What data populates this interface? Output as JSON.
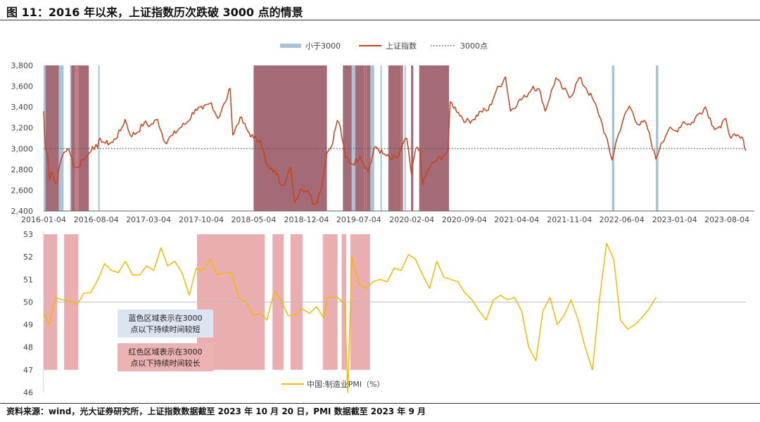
{
  "figure": {
    "title": "图 11：2016 年以来，上证指数历次跌破 3000 点的情景",
    "source": "资料来源：wind，光大证券研究所，上证指数数据截至 2023 年 10 月 20 日，PMI 数据截至 2023 年 9 月"
  },
  "colors": {
    "index_line": "#c8411a",
    "pmi_line": "#f5b800",
    "blue_band": "#a9c4d8",
    "red_band": "#a23c43",
    "red_band_bottom": "#e8a0a2",
    "dotted": "#555555",
    "note_blue_bg": "#dde4f1",
    "note_red_bg": "#ecb2b3"
  },
  "chart_data": [
    {
      "type": "line",
      "series_name": "上证指数",
      "ylim": [
        2400,
        3800
      ],
      "yticks": [
        "2,400",
        "2,600",
        "2,800",
        "3,000",
        "3,200",
        "3,400",
        "3,600",
        "3,800"
      ],
      "xlim": [
        "2016-01-04",
        "2023-10-20"
      ],
      "xticks": [
        "2016-01-04",
        "2016-08-04",
        "2017-03-04",
        "2017-10-04",
        "2018-05-04",
        "2018-12-04",
        "2019-07-04",
        "2020-02-04",
        "2020-09-04",
        "2021-04-04",
        "2021-11-04",
        "2022-06-04",
        "2023-01-04",
        "2023-08-04"
      ],
      "reference_line": {
        "name": "3000点",
        "value": 3000
      },
      "legend": [
        {
          "label": "小于3000",
          "kind": "band"
        },
        {
          "label": "上证指数",
          "kind": "line"
        },
        {
          "label": "3000点",
          "kind": "dotted"
        }
      ],
      "legend_position": "top-center",
      "points": [
        [
          "2016-01-04",
          3360
        ],
        [
          "2016-01-08",
          3150
        ],
        [
          "2016-01-12",
          3000
        ],
        [
          "2016-01-20",
          2950
        ],
        [
          "2016-01-28",
          2700
        ],
        [
          "2016-02-05",
          2780
        ],
        [
          "2016-02-15",
          2700
        ],
        [
          "2016-02-29",
          2680
        ],
        [
          "2016-03-10",
          2850
        ],
        [
          "2016-03-25",
          2960
        ],
        [
          "2016-04-10",
          3000
        ],
        [
          "2016-04-20",
          2950
        ],
        [
          "2016-05-10",
          2820
        ],
        [
          "2016-05-25",
          2820
        ],
        [
          "2016-06-10",
          2900
        ],
        [
          "2016-06-30",
          2930
        ],
        [
          "2016-07-20",
          3020
        ],
        [
          "2016-08-10",
          3010
        ],
        [
          "2016-08-20",
          3100
        ],
        [
          "2016-09-10",
          3050
        ],
        [
          "2016-10-10",
          3060
        ],
        [
          "2016-11-10",
          3170
        ],
        [
          "2016-11-29",
          3280
        ],
        [
          "2016-12-20",
          3130
        ],
        [
          "2017-01-15",
          3150
        ],
        [
          "2017-02-15",
          3250
        ],
        [
          "2017-03-10",
          3220
        ],
        [
          "2017-04-10",
          3280
        ],
        [
          "2017-05-10",
          3060
        ],
        [
          "2017-06-10",
          3130
        ],
        [
          "2017-07-10",
          3200
        ],
        [
          "2017-08-10",
          3260
        ],
        [
          "2017-09-10",
          3380
        ],
        [
          "2017-10-10",
          3380
        ],
        [
          "2017-11-14",
          3440
        ],
        [
          "2017-12-10",
          3290
        ],
        [
          "2018-01-10",
          3450
        ],
        [
          "2018-01-29",
          3580
        ],
        [
          "2018-02-09",
          3130
        ],
        [
          "2018-03-10",
          3300
        ],
        [
          "2018-04-10",
          3170
        ],
        [
          "2018-05-04",
          3100
        ],
        [
          "2018-06-01",
          3080
        ],
        [
          "2018-06-25",
          2850
        ],
        [
          "2018-07-10",
          2800
        ],
        [
          "2018-08-10",
          2760
        ],
        [
          "2018-08-20",
          2660
        ],
        [
          "2018-09-10",
          2680
        ],
        [
          "2018-09-30",
          2820
        ],
        [
          "2018-10-18",
          2480
        ],
        [
          "2018-11-10",
          2610
        ],
        [
          "2018-12-10",
          2600
        ],
        [
          "2019-01-04",
          2460
        ],
        [
          "2019-01-31",
          2590
        ],
        [
          "2019-02-25",
          2960
        ],
        [
          "2019-03-15",
          3020
        ],
        [
          "2019-04-08",
          3270
        ],
        [
          "2019-04-20",
          3210
        ],
        [
          "2019-05-10",
          2920
        ],
        [
          "2019-06-10",
          2850
        ],
        [
          "2019-07-10",
          2930
        ],
        [
          "2019-08-10",
          2780
        ],
        [
          "2019-09-10",
          3020
        ],
        [
          "2019-10-10",
          2950
        ],
        [
          "2019-11-10",
          2900
        ],
        [
          "2019-12-10",
          2920
        ],
        [
          "2019-12-31",
          3050
        ],
        [
          "2020-01-14",
          3100
        ],
        [
          "2020-02-03",
          2750
        ],
        [
          "2020-02-20",
          3000
        ],
        [
          "2020-03-10",
          2980
        ],
        [
          "2020-03-19",
          2650
        ],
        [
          "2020-04-10",
          2800
        ],
        [
          "2020-05-10",
          2880
        ],
        [
          "2020-06-10",
          2930
        ],
        [
          "2020-06-30",
          2980
        ],
        [
          "2020-07-09",
          3450
        ],
        [
          "2020-08-10",
          3350
        ],
        [
          "2020-09-10",
          3260
        ],
        [
          "2020-10-10",
          3280
        ],
        [
          "2020-11-10",
          3360
        ],
        [
          "2020-12-10",
          3370
        ],
        [
          "2021-01-10",
          3550
        ],
        [
          "2021-02-18",
          3690
        ],
        [
          "2021-03-10",
          3360
        ],
        [
          "2021-04-10",
          3450
        ],
        [
          "2021-05-10",
          3500
        ],
        [
          "2021-06-10",
          3600
        ],
        [
          "2021-07-10",
          3540
        ],
        [
          "2021-07-28",
          3360
        ],
        [
          "2021-09-10",
          3680
        ],
        [
          "2021-10-10",
          3570
        ],
        [
          "2021-11-10",
          3500
        ],
        [
          "2021-12-13",
          3680
        ],
        [
          "2022-01-10",
          3580
        ],
        [
          "2022-02-10",
          3460
        ],
        [
          "2022-03-10",
          3290
        ],
        [
          "2022-04-26",
          2890
        ],
        [
          "2022-05-10",
          3050
        ],
        [
          "2022-06-10",
          3280
        ],
        [
          "2022-07-05",
          3410
        ],
        [
          "2022-08-10",
          3230
        ],
        [
          "2022-09-10",
          3250
        ],
        [
          "2022-10-20",
          2900
        ],
        [
          "2022-11-10",
          3050
        ],
        [
          "2022-12-10",
          3180
        ],
        [
          "2023-01-10",
          3170
        ],
        [
          "2023-02-10",
          3260
        ],
        [
          "2023-03-10",
          3230
        ],
        [
          "2023-04-10",
          3330
        ],
        [
          "2023-05-09",
          3400
        ],
        [
          "2023-06-10",
          3210
        ],
        [
          "2023-07-10",
          3200
        ],
        [
          "2023-07-31",
          3290
        ],
        [
          "2023-08-20",
          3100
        ],
        [
          "2023-09-10",
          3120
        ],
        [
          "2023-10-10",
          3080
        ],
        [
          "2023-10-20",
          2980
        ]
      ],
      "bands_blue": [
        [
          "2016-01-04",
          "2016-03-25"
        ],
        [
          "2016-04-20",
          "2016-05-10"
        ],
        [
          "2016-05-25",
          "2016-07-05"
        ],
        [
          "2016-08-12",
          "2016-08-18"
        ],
        [
          "2018-05-04",
          "2019-02-25"
        ],
        [
          "2019-05-01",
          "2019-07-25"
        ],
        [
          "2019-07-28",
          "2019-08-02"
        ],
        [
          "2019-08-05",
          "2019-09-05"
        ],
        [
          "2019-09-30",
          "2019-10-05"
        ],
        [
          "2019-11-01",
          "2019-12-20"
        ],
        [
          "2019-12-24",
          "2019-12-29"
        ],
        [
          "2020-01-05",
          "2020-01-10"
        ],
        [
          "2020-02-01",
          "2020-02-10"
        ],
        [
          "2020-03-05",
          "2020-07-04"
        ],
        [
          "2022-04-25",
          "2022-05-05"
        ],
        [
          "2022-10-20",
          "2022-10-30"
        ]
      ],
      "bands_red": [
        [
          "2016-01-12",
          "2016-03-05"
        ],
        [
          "2016-04-25",
          "2016-07-05"
        ],
        [
          "2018-05-04",
          "2019-02-25"
        ],
        [
          "2019-05-01",
          "2019-06-05"
        ],
        [
          "2019-06-20",
          "2019-08-20"
        ],
        [
          "2019-11-01",
          "2019-12-30"
        ],
        [
          "2020-02-01",
          "2020-02-10"
        ],
        [
          "2020-03-05",
          "2020-07-04"
        ]
      ]
    },
    {
      "type": "line",
      "series_name": "中国:制造业PMI（%）",
      "ylim": [
        46,
        53
      ],
      "yticks": [
        "46",
        "47",
        "48",
        "49",
        "50",
        "51",
        "52",
        "53"
      ],
      "reference_line": {
        "value": 50
      },
      "legend_position": "bottom-center",
      "points": [
        [
          "2016-01-04",
          49.5
        ],
        [
          "2016-02-10",
          49.0
        ],
        [
          "2016-03-20",
          50.2
        ],
        [
          "2016-05-01",
          50.1
        ],
        [
          "2016-07-01",
          50.0
        ],
        [
          "2016-08-10",
          49.9
        ],
        [
          "2016-09-20",
          50.4
        ],
        [
          "2016-11-01",
          50.4
        ],
        [
          "2016-12-20",
          51.0
        ],
        [
          "2017-02-01",
          51.7
        ],
        [
          "2017-03-15",
          51.4
        ],
        [
          "2017-04-30",
          51.3
        ],
        [
          "2017-06-15",
          51.8
        ],
        [
          "2017-07-30",
          51.2
        ],
        [
          "2017-09-15",
          51.2
        ],
        [
          "2017-10-30",
          51.6
        ],
        [
          "2017-12-15",
          51.4
        ],
        [
          "2018-01-30",
          52.4
        ],
        [
          "2018-03-15",
          51.6
        ],
        [
          "2018-04-30",
          51.8
        ],
        [
          "2018-06-15",
          51.3
        ],
        [
          "2018-08-01",
          50.3
        ],
        [
          "2018-09-15",
          51.5
        ],
        [
          "2018-10-30",
          51.4
        ],
        [
          "2018-12-15",
          51.9
        ],
        [
          "2019-01-30",
          51.2
        ],
        [
          "2019-03-15",
          51.3
        ],
        [
          "2019-04-30",
          51.3
        ],
        [
          "2019-06-15",
          50.2
        ],
        [
          "2019-08-01",
          50.0
        ],
        [
          "2019-09-15",
          49.4
        ],
        [
          "2019-10-30",
          49.5
        ],
        [
          "2019-12-15",
          49.2
        ],
        [
          "2020-02-01",
          50.5
        ],
        [
          "2020-03-15",
          50.1
        ],
        [
          "2020-04-30",
          49.4
        ],
        [
          "2020-06-15",
          49.4
        ],
        [
          "2020-07-30",
          49.7
        ],
        [
          "2020-09-15",
          49.5
        ],
        [
          "2020-10-30",
          49.8
        ],
        [
          "2020-12-15",
          49.3
        ],
        [
          "2021-01-10",
          50.2
        ],
        [
          "2021-03-15",
          50.2
        ],
        [
          "2021-04-30",
          49.9
        ],
        [
          "2021-05-20",
          46.0
        ],
        [
          "2021-06-15",
          52.0
        ],
        [
          "2021-07-30",
          50.8
        ],
        [
          "2021-09-15",
          50.6
        ],
        [
          "2021-10-30",
          50.9
        ],
        [
          "2021-12-15",
          51.0
        ],
        [
          "2022-01-30",
          50.9
        ],
        [
          "2022-03-15",
          51.5
        ],
        [
          "2022-04-30",
          51.4
        ],
        [
          "2022-06-15",
          52.1
        ],
        [
          "2022-07-30",
          51.9
        ],
        [
          "2022-09-15",
          51.2
        ],
        [
          "2022-10-30",
          50.6
        ],
        [
          "2022-12-15",
          51.8
        ],
        [
          "2023-01-30",
          51.1
        ],
        [
          "2023-03-15",
          51.0
        ],
        [
          "2023-04-30",
          50.9
        ],
        [
          "2023-06-15",
          50.4
        ],
        [
          "2023-07-30",
          50.1
        ],
        [
          "2023-09-15",
          49.6
        ],
        [
          "2023-10-30",
          49.2
        ],
        [
          "2023-12-15",
          50.1
        ],
        [
          "2024-01-30",
          50.3
        ],
        [
          "2024-03-15",
          50.1
        ],
        [
          "2024-04-30",
          50.2
        ],
        [
          "2024-06-15",
          49.6
        ],
        [
          "2024-07-30",
          48.0
        ],
        [
          "2024-09-15",
          47.4
        ],
        [
          "2024-10-30",
          49.6
        ],
        [
          "2024-12-15",
          50.2
        ],
        [
          "2025-01-30",
          49.0
        ],
        [
          "2025-03-15",
          49.4
        ],
        [
          "2025-04-30",
          50.1
        ],
        [
          "2025-06-15",
          49.2
        ],
        [
          "2025-07-30",
          48.0
        ],
        [
          "2025-09-15",
          47.0
        ],
        [
          "2025-10-30",
          50.1
        ],
        [
          "2025-12-15",
          52.6
        ],
        [
          "2026-01-30",
          51.9
        ],
        [
          "2026-03-15",
          49.2
        ],
        [
          "2026-04-30",
          48.8
        ],
        [
          "2026-06-15",
          49.0
        ],
        [
          "2026-07-30",
          49.3
        ],
        [
          "2026-09-15",
          49.7
        ],
        [
          "2026-10-30",
          50.2
        ]
      ],
      "pmi_xlim": [
        "2016-01-04",
        "2028-06-01"
      ],
      "bands_red": [
        [
          "2016-01-04",
          "2016-04-01"
        ],
        [
          "2016-05-15",
          "2016-08-15"
        ],
        [
          "2018-09-20",
          "2019-12-01"
        ],
        [
          "2020-01-20",
          "2020-04-01"
        ],
        [
          "2020-05-15",
          "2020-08-01"
        ],
        [
          "2020-12-10",
          "2021-03-15"
        ],
        [
          "2021-04-10",
          "2021-05-10"
        ],
        [
          "2021-06-05",
          "2021-10-10"
        ]
      ],
      "notes": [
        {
          "text_lines": [
            "蓝色区域表示在3000",
            "点以下持续时间较短"
          ],
          "color": "blue"
        },
        {
          "text_lines": [
            "红色区域表示在3000",
            "点以下持续时间较长"
          ],
          "color": "red"
        }
      ]
    }
  ]
}
